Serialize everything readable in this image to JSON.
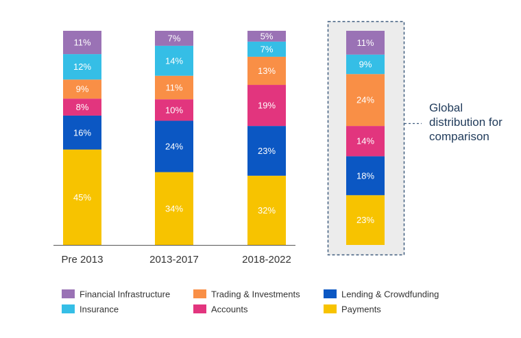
{
  "chart_data": {
    "type": "bar",
    "stacked": true,
    "categories": [
      "Pre 2013",
      "2013-2017",
      "2018-2022"
    ],
    "series": [
      {
        "name": "Payments",
        "color": "#F7C300",
        "values": [
          45,
          34,
          32
        ]
      },
      {
        "name": "Lending & Crowdfunding",
        "color": "#0B57C3",
        "values": [
          16,
          24,
          23
        ]
      },
      {
        "name": "Accounts",
        "color": "#E2357E",
        "values": [
          8,
          10,
          19
        ]
      },
      {
        "name": "Trading & Investments",
        "color": "#F98F46",
        "values": [
          9,
          11,
          13
        ]
      },
      {
        "name": "Insurance",
        "color": "#35BEE6",
        "values": [
          12,
          14,
          7
        ]
      },
      {
        "name": "Financial Infrastructure",
        "color": "#9A72B5",
        "values": [
          11,
          7,
          5
        ]
      }
    ],
    "comparison": {
      "label": "Global distribution for comparison",
      "label_lines": [
        "Global",
        "distribution for",
        "comparison"
      ],
      "values": {
        "Payments": 23,
        "Lending & Crowdfunding": 18,
        "Accounts": 14,
        "Trading & Investments": 24,
        "Insurance": 9,
        "Financial Infrastructure": 11
      }
    },
    "legend": {
      "placement": "bottom",
      "order": [
        "Financial Infrastructure",
        "Trading & Investments",
        "Lending & Crowdfunding",
        "Insurance",
        "Accounts",
        "Payments"
      ]
    },
    "label_suffix": "%",
    "colors": {
      "axis": "#555555",
      "comparison_background": "#ECECEC",
      "comparison_border": "#3D5A7D"
    }
  }
}
